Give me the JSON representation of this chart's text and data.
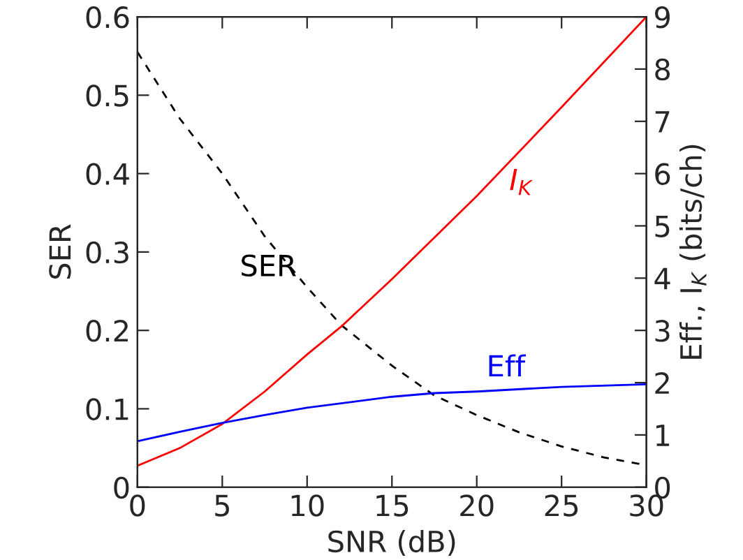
{
  "chart_data": {
    "type": "line",
    "xlabel": "SNR (dB)",
    "ylabel": "SER",
    "y2label": "Eff., I$_{K}$ (bits/ch)",
    "xlim": [
      0,
      30
    ],
    "xticks": [
      0,
      5,
      10,
      15,
      20,
      25,
      30
    ],
    "ylim": [
      0,
      0.6
    ],
    "yticks": [
      0,
      0.1,
      0.2,
      0.3,
      0.4,
      0.5,
      0.6
    ],
    "y2lim": [
      0,
      9
    ],
    "y2ticks": [
      0,
      1,
      2,
      3,
      4,
      5,
      6,
      7,
      8,
      9
    ],
    "grid": false,
    "legend": false,
    "series": [
      {
        "name": "SER",
        "color": "#000000",
        "line_style": "dashed",
        "axis": "y",
        "x": [
          0,
          2.5,
          5,
          7.5,
          10,
          12,
          15,
          17.5,
          20,
          22.5,
          25,
          27.5,
          30
        ],
        "values": [
          0.555,
          0.47,
          0.4,
          0.32,
          0.255,
          0.207,
          0.155,
          0.117,
          0.092,
          0.07,
          0.052,
          0.038,
          0.028
        ]
      },
      {
        "name": "I$_{K}$",
        "color": "#ff0000",
        "line_style": "solid",
        "axis": "y2",
        "x": [
          0,
          2.5,
          5,
          7.5,
          10,
          12,
          15,
          20,
          25,
          30
        ],
        "values": [
          0.41,
          0.75,
          1.21,
          1.83,
          2.54,
          3.07,
          3.98,
          5.57,
          7.27,
          9.0
        ]
      },
      {
        "name": "Eff",
        "color": "#0000ff",
        "line_style": "solid",
        "axis": "y2",
        "x": [
          0,
          2.5,
          5,
          7.5,
          10,
          15,
          17.5,
          20,
          25,
          30
        ],
        "values": [
          0.88,
          1.06,
          1.23,
          1.38,
          1.52,
          1.73,
          1.8,
          1.83,
          1.92,
          1.97
        ]
      }
    ]
  }
}
